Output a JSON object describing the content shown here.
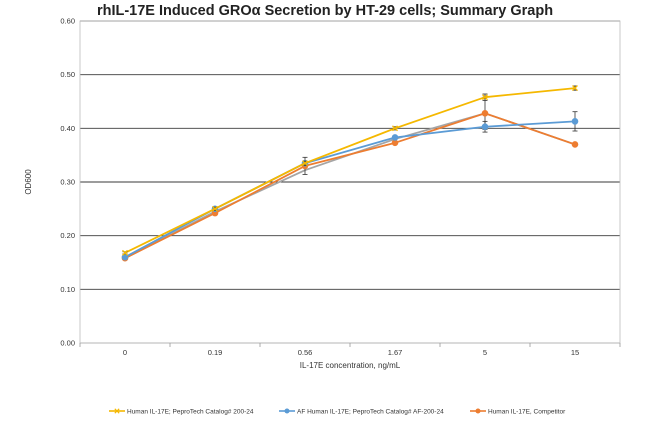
{
  "chart_data": {
    "type": "line",
    "title": "rhIL-17E Induced GROα Secretion by HT-29 cells; Summary Graph",
    "xlabel": "IL-17E concentration, ng/mL",
    "ylabel": "OD600",
    "categories": [
      "0",
      "0.19",
      "0.56",
      "1.67",
      "5",
      "15"
    ],
    "ylim": [
      0,
      0.6
    ],
    "yticks": [
      "0.00",
      "0.10",
      "0.20",
      "0.30",
      "0.40",
      "0.50",
      "0.60"
    ],
    "grid": true,
    "legend": "bottom",
    "series": [
      {
        "name": "Human IL-17E; PeproTech Catalog# 200-24",
        "color": "#f5b800",
        "marker": "x",
        "values": [
          0.168,
          0.25,
          0.335,
          0.4,
          0.458,
          0.475
        ],
        "errors": [
          0.002,
          0.003,
          0.004,
          0.003,
          0.006,
          0.004
        ]
      },
      {
        "name": "AF Human IL-17E; PeproTech Catalog# AF-200-24",
        "color": "#5b9bd5",
        "marker": "circle",
        "values": [
          0.16,
          0.25,
          0.335,
          0.383,
          0.403,
          0.413
        ],
        "errors": [
          0.002,
          0.003,
          0.004,
          0.003,
          0.01,
          0.018
        ]
      },
      {
        "name": "Human IL-17E, Competitor",
        "color": "#ed7d31",
        "marker": "circle",
        "values": [
          0.158,
          0.242,
          0.33,
          0.373,
          0.428,
          0.37
        ],
        "errors": [
          0.002,
          0.003,
          0.016,
          0.003,
          0.03,
          0.003
        ]
      },
      {
        "name": "",
        "color": "#a5a5a5",
        "marker": "none",
        "values": [
          0.158,
          0.245,
          0.322,
          0.38,
          0.428,
          0.37
        ],
        "errors": []
      }
    ]
  }
}
